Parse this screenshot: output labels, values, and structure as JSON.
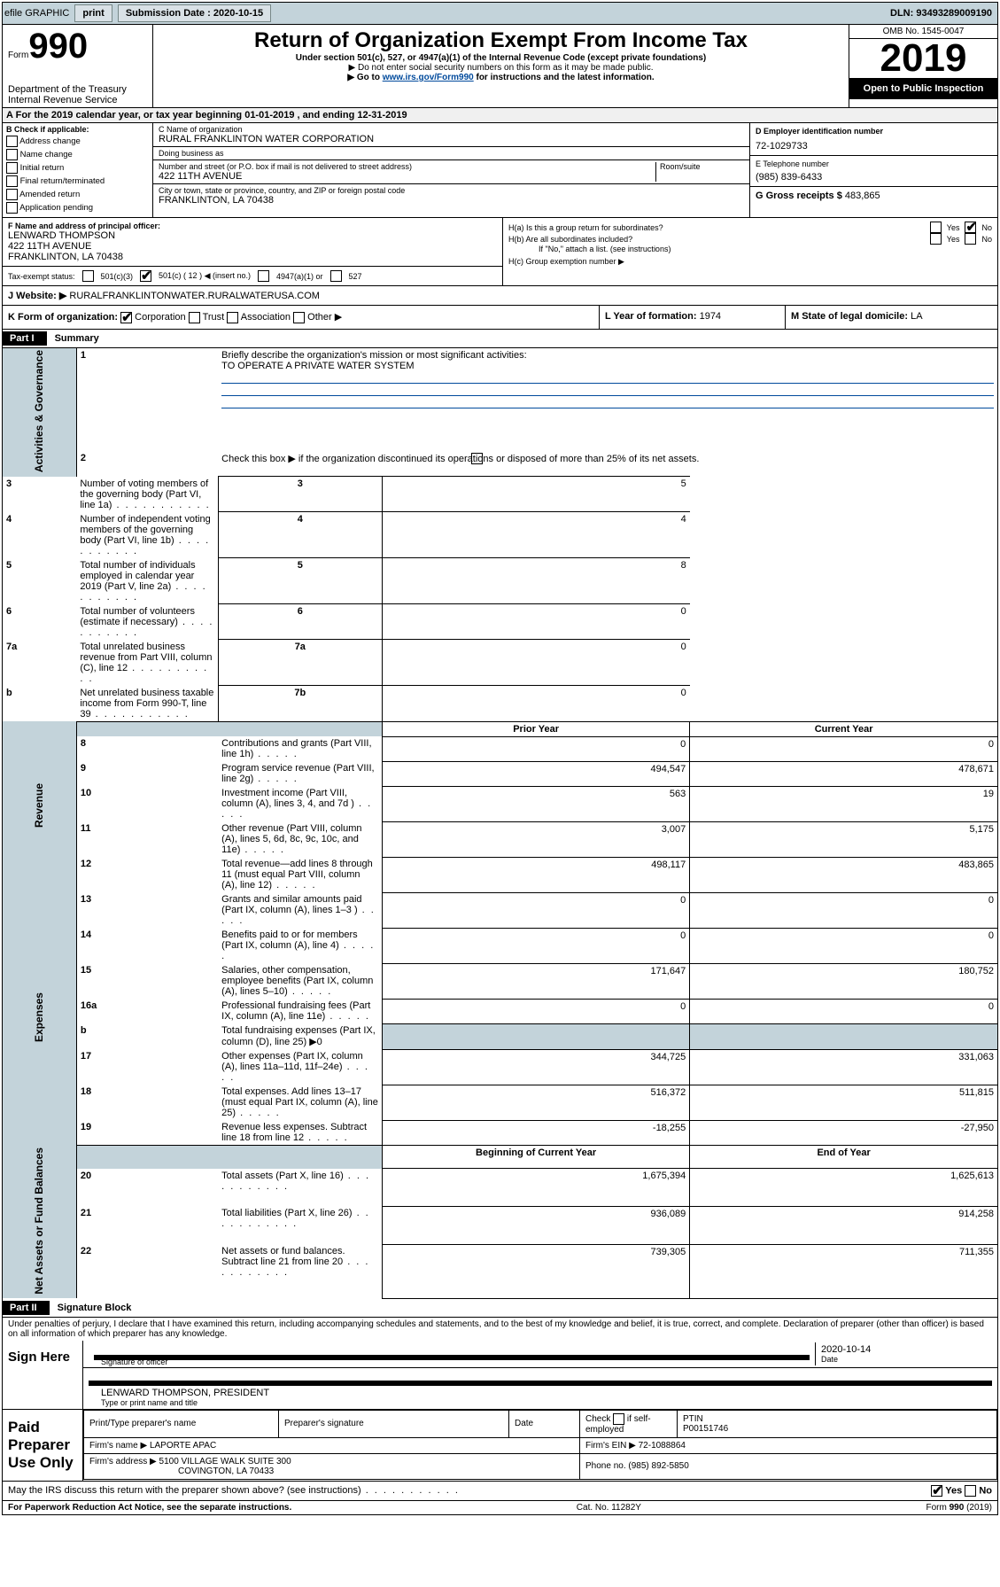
{
  "topbar": {
    "efile": "efile GRAPHIC",
    "print": "print",
    "sub_label": "Submission Date :",
    "sub_date": "2020-10-15",
    "dln_label": "DLN:",
    "dln": "93493289009190"
  },
  "header": {
    "form_word": "Form",
    "form_num": "990",
    "title": "Return of Organization Exempt From Income Tax",
    "subtitle": "Under section 501(c), 527, or 4947(a)(1) of the Internal Revenue Code (except private foundations)",
    "note1": "▶ Do not enter social security numbers on this form as it may be made public.",
    "note2_pre": "▶ Go to ",
    "note2_link": "www.irs.gov/Form990",
    "note2_post": " for instructions and the latest information.",
    "dept": "Department of the Treasury\nInternal Revenue Service",
    "omb": "OMB No. 1545-0047",
    "year": "2019",
    "open": "Open to Public Inspection"
  },
  "period": {
    "text": "For the 2019 calendar year, or tax year beginning 01-01-2019   , and ending 12-31-2019"
  },
  "boxB": {
    "label": "B Check if applicable:",
    "items": [
      "Address change",
      "Name change",
      "Initial return",
      "Final return/terminated",
      "Amended return",
      "Application pending"
    ]
  },
  "boxC": {
    "name_label": "C Name of organization",
    "name": "RURAL FRANKLINTON WATER CORPORATION",
    "dba_label": "Doing business as",
    "dba": "",
    "addr_label": "Number and street (or P.O. box if mail is not delivered to street address)",
    "room_label": "Room/suite",
    "addr": "422 11TH AVENUE",
    "city_label": "City or town, state or province, country, and ZIP or foreign postal code",
    "city": "FRANKLINTON, LA  70438"
  },
  "boxD": {
    "label": "D Employer identification number",
    "ein": "72-1029733"
  },
  "boxE": {
    "label": "E Telephone number",
    "phone": "(985) 839-6433"
  },
  "boxG": {
    "label": "G Gross receipts $",
    "amount": "483,865"
  },
  "boxF": {
    "label": "F  Name and address of principal officer:",
    "name": "LENWARD THOMPSON",
    "addr1": "422 11TH AVENUE",
    "addr2": "FRANKLINTON, LA  70438"
  },
  "boxH": {
    "ha": "H(a)  Is this a group return for subordinates?",
    "hb": "H(b)  Are all subordinates included?",
    "hb_note": "If \"No,\" attach a list. (see instructions)",
    "hc": "H(c)  Group exemption number ▶"
  },
  "taxStatus": {
    "label": "Tax-exempt status:",
    "c3": "501(c)(3)",
    "c": "501(c) ( 12 ) ◀ (insert no.)",
    "a4947": "4947(a)(1) or",
    "s527": "527"
  },
  "boxJ": {
    "label": "J     Website: ▶",
    "site": "RURALFRANKLINTONWATER.RURALWATERUSA.COM"
  },
  "boxK": {
    "label": "K Form of organization:",
    "corp": "Corporation",
    "trust": "Trust",
    "assoc": "Association",
    "other": "Other ▶"
  },
  "boxL": {
    "label": "L Year of formation:",
    "year": "1974"
  },
  "boxM": {
    "label": "M State of legal domicile:",
    "state": "LA"
  },
  "part1": {
    "hdr": "Part I",
    "title": "Summary"
  },
  "summary": {
    "q1": "Briefly describe the organization's mission or most significant activities:",
    "mission": "TO OPERATE A PRIVATE WATER SYSTEM",
    "q2": "Check this box ▶        if the organization discontinued its operations or disposed of more than 25% of its net assets.",
    "lines": [
      {
        "n": "3",
        "t": "Number of voting members of the governing body (Part VI, line 1a)",
        "box": "3",
        "v": "5"
      },
      {
        "n": "4",
        "t": "Number of independent voting members of the governing body (Part VI, line 1b)",
        "box": "4",
        "v": "4"
      },
      {
        "n": "5",
        "t": "Total number of individuals employed in calendar year 2019 (Part V, line 2a)",
        "box": "5",
        "v": "8"
      },
      {
        "n": "6",
        "t": "Total number of volunteers (estimate if necessary)",
        "box": "6",
        "v": "0"
      },
      {
        "n": "7a",
        "t": "Total unrelated business revenue from Part VIII, column (C), line 12",
        "box": "7a",
        "v": "0"
      },
      {
        "n": "b",
        "t": "Net unrelated business taxable income from Form 990-T, line 39",
        "box": "7b",
        "v": "0"
      }
    ],
    "prior_hdr": "Prior Year",
    "cur_hdr": "Current Year",
    "revenue": [
      {
        "n": "8",
        "t": "Contributions and grants (Part VIII, line 1h)",
        "p": "0",
        "c": "0"
      },
      {
        "n": "9",
        "t": "Program service revenue (Part VIII, line 2g)",
        "p": "494,547",
        "c": "478,671"
      },
      {
        "n": "10",
        "t": "Investment income (Part VIII, column (A), lines 3, 4, and 7d )",
        "p": "563",
        "c": "19"
      },
      {
        "n": "11",
        "t": "Other revenue (Part VIII, column (A), lines 5, 6d, 8c, 9c, 10c, and 11e)",
        "p": "3,007",
        "c": "5,175"
      },
      {
        "n": "12",
        "t": "Total revenue—add lines 8 through 11 (must equal Part VIII, column (A), line 12)",
        "p": "498,117",
        "c": "483,865"
      }
    ],
    "expenses": [
      {
        "n": "13",
        "t": "Grants and similar amounts paid (Part IX, column (A), lines 1–3 )",
        "p": "0",
        "c": "0"
      },
      {
        "n": "14",
        "t": "Benefits paid to or for members (Part IX, column (A), line 4)",
        "p": "0",
        "c": "0"
      },
      {
        "n": "15",
        "t": "Salaries, other compensation, employee benefits (Part IX, column (A), lines 5–10)",
        "p": "171,647",
        "c": "180,752"
      },
      {
        "n": "16a",
        "t": "Professional fundraising fees (Part IX, column (A), line 11e)",
        "p": "0",
        "c": "0"
      },
      {
        "n": "b",
        "t": "Total fundraising expenses (Part IX, column (D), line 25) ▶0",
        "p": "",
        "c": "",
        "gray": true
      },
      {
        "n": "17",
        "t": "Other expenses (Part IX, column (A), lines 11a–11d, 11f–24e)",
        "p": "344,725",
        "c": "331,063"
      },
      {
        "n": "18",
        "t": "Total expenses. Add lines 13–17 (must equal Part IX, column (A), line 25)",
        "p": "516,372",
        "c": "511,815"
      },
      {
        "n": "19",
        "t": "Revenue less expenses. Subtract line 18 from line 12",
        "p": "-18,255",
        "c": "-27,950"
      }
    ],
    "bcy_hdr": "Beginning of Current Year",
    "eoy_hdr": "End of Year",
    "netassets": [
      {
        "n": "20",
        "t": "Total assets (Part X, line 16)",
        "p": "1,675,394",
        "c": "1,625,613"
      },
      {
        "n": "21",
        "t": "Total liabilities (Part X, line 26)",
        "p": "936,089",
        "c": "914,258"
      },
      {
        "n": "22",
        "t": "Net assets or fund balances. Subtract line 21 from line 20",
        "p": "739,305",
        "c": "711,355"
      }
    ],
    "side_labels": {
      "gov": "Activities & Governance",
      "rev": "Revenue",
      "exp": "Expenses",
      "na": "Net Assets or Fund Balances"
    }
  },
  "part2": {
    "hdr": "Part II",
    "title": "Signature Block"
  },
  "sig": {
    "perjury": "Under penalties of perjury, I declare that I have examined this return, including accompanying schedules and statements, and to the best of my knowledge and belief, it is true, correct, and complete. Declaration of preparer (other than officer) is based on all information of which preparer has any knowledge.",
    "sign_label": "Sign Here",
    "sig_officer": "Signature of officer",
    "date": "2020-10-14",
    "date_label": "Date",
    "typed_name": "LENWARD THOMPSON, PRESIDENT",
    "typed_label": "Type or print name and title"
  },
  "prep": {
    "label": "Paid Preparer Use Only",
    "h1": "Print/Type preparer's name",
    "h2": "Preparer's signature",
    "h3": "Date",
    "h4_a": "Check",
    "h4_b": "if self-employed",
    "h5": "PTIN",
    "ptin": "P00151746",
    "firm_label": "Firm's name    ▶",
    "firm": "LAPORTE APAC",
    "ein_label": "Firm's EIN ▶",
    "ein": "72-1088864",
    "addr_label": "Firm's address ▶",
    "addr1": "5100 VILLAGE WALK SUITE 300",
    "addr2": "COVINGTON, LA  70433",
    "phone_label": "Phone no.",
    "phone": "(985) 892-5850"
  },
  "discuss": "May the IRS discuss this return with the preparer shown above? (see instructions)",
  "footer": {
    "pra": "For Paperwork Reduction Act Notice, see the separate instructions.",
    "cat": "Cat. No. 11282Y",
    "form": "Form 990 (2019)"
  },
  "yes": "Yes",
  "no": "No"
}
